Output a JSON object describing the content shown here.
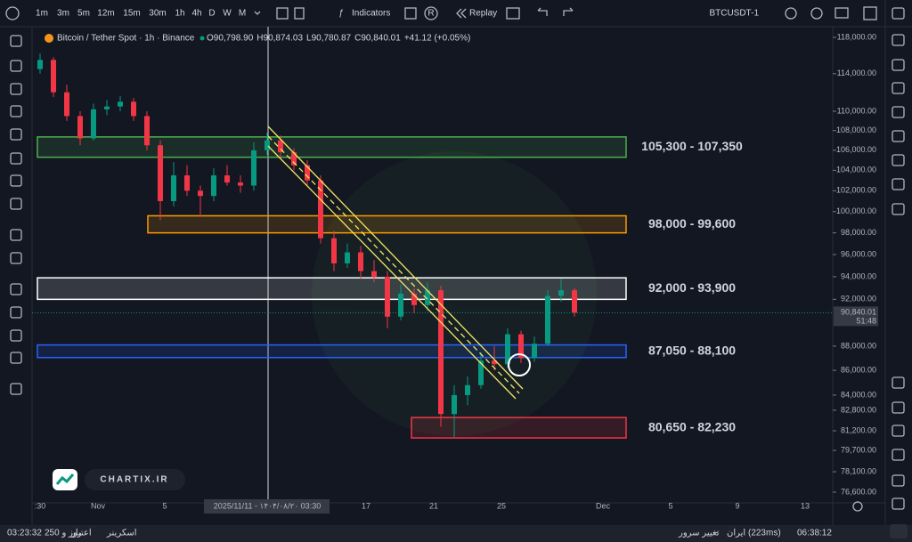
{
  "toolbar": {
    "intervals": [
      "1m",
      "3m",
      "5m",
      "12m",
      "15m",
      "30m",
      "1h",
      "4h",
      "D",
      "W",
      "M"
    ],
    "indicators": "Indicators",
    "replay": "Replay",
    "symbol": "BTCUSDT-1",
    "letter": "R"
  },
  "chart_data": {
    "type": "candlestick",
    "title": "Bitcoin / Tether Spot · 1h · Binance",
    "ohlc_legend": {
      "o_label": "O",
      "o": "90,798.90",
      "h_label": "H",
      "h": "90,874.03",
      "l_label": "L",
      "l": "90,780.87",
      "c_label": "C",
      "c": "90,840.01",
      "change": "+41.12 (+0.05%)"
    },
    "log_scale": true,
    "ylim": [
      76600,
      118000
    ],
    "yticks": [
      {
        "value": 118000,
        "label": "118,000.00"
      },
      {
        "value": 114000,
        "label": "114,000.00"
      },
      {
        "value": 110000,
        "label": "110,000.00"
      },
      {
        "value": 108000,
        "label": "108,000.00"
      },
      {
        "value": 106000,
        "label": "106,000.00"
      },
      {
        "value": 104000,
        "label": "104,000.00"
      },
      {
        "value": 102000,
        "label": "102,000.00"
      },
      {
        "value": 100000,
        "label": "100,000.00"
      },
      {
        "value": 98000,
        "label": "98,000.00"
      },
      {
        "value": 96000,
        "label": "96,000.00"
      },
      {
        "value": 94000,
        "label": "94,000.00"
      },
      {
        "value": 92000,
        "label": "92,000.00"
      },
      {
        "value": 88000,
        "label": "88,000.00"
      },
      {
        "value": 86000,
        "label": "86,000.00"
      },
      {
        "value": 84000,
        "label": "84,000.00"
      },
      {
        "value": 82800,
        "label": "82,800.00"
      },
      {
        "value": 81200,
        "label": "81,200.00"
      },
      {
        "value": 79700,
        "label": "79,700.00"
      },
      {
        "value": 78100,
        "label": "78,100.00"
      },
      {
        "value": 76600,
        "label": "76,600.00"
      }
    ],
    "x_labels": [
      ":30",
      "Nov",
      "5",
      "17",
      "21",
      "25",
      "Dec",
      "5",
      "9",
      "13"
    ],
    "crosshair_label": "2025/11/11 - ۱۴۰۴/۰۸/۲۰   03:30",
    "last_price": {
      "value": 90840.01,
      "label": "90,840.01",
      "countdown": "51:48"
    },
    "up_color": "#089981",
    "down_color": "#f23645",
    "ohlc": [
      [
        114500,
        116200,
        114000,
        115500
      ],
      [
        115500,
        115800,
        111500,
        112000
      ],
      [
        112000,
        112800,
        109000,
        109500
      ],
      [
        109500,
        110000,
        106500,
        107200
      ],
      [
        107200,
        110800,
        107000,
        110200
      ],
      [
        110200,
        111200,
        109600,
        110500
      ],
      [
        110500,
        111600,
        110000,
        111000
      ],
      [
        111000,
        111400,
        109000,
        109500
      ],
      [
        109500,
        110000,
        106000,
        106500
      ],
      [
        106500,
        107000,
        99200,
        101000
      ],
      [
        101000,
        104800,
        100500,
        103500
      ],
      [
        103500,
        104500,
        101500,
        102000
      ],
      [
        102000,
        102500,
        99500,
        101500
      ],
      [
        101500,
        104200,
        101000,
        103500
      ],
      [
        103500,
        104500,
        102500,
        102800
      ],
      [
        102800,
        103500,
        101800,
        102500
      ],
      [
        102500,
        106800,
        102000,
        106000
      ],
      [
        106000,
        107800,
        105500,
        107000
      ],
      [
        107000,
        107500,
        105200,
        105800
      ],
      [
        105800,
        106200,
        104000,
        104500
      ],
      [
        104500,
        105000,
        102500,
        103000
      ],
      [
        103000,
        103500,
        97000,
        97500
      ],
      [
        97500,
        98200,
        94500,
        95200
      ],
      [
        95200,
        97000,
        94800,
        96200
      ],
      [
        96200,
        96800,
        93800,
        94500
      ],
      [
        94500,
        95500,
        93500,
        94000
      ],
      [
        94000,
        94500,
        89500,
        90500
      ],
      [
        90500,
        93300,
        90200,
        92500
      ],
      [
        92500,
        93000,
        90800,
        91500
      ],
      [
        91500,
        93500,
        91000,
        92800
      ],
      [
        92800,
        93200,
        81500,
        82500
      ],
      [
        82500,
        84800,
        80700,
        84000
      ],
      [
        84000,
        85500,
        83200,
        84800
      ],
      [
        84800,
        87500,
        84500,
        86800
      ],
      [
        86800,
        88000,
        86000,
        86500
      ],
      [
        86500,
        89500,
        86200,
        89000
      ],
      [
        89000,
        89300,
        86600,
        87000
      ],
      [
        87000,
        88800,
        86700,
        88200
      ],
      [
        88200,
        92800,
        88000,
        92300
      ],
      [
        92300,
        93800,
        91800,
        92800
      ],
      [
        92800,
        93000,
        90500,
        90840
      ]
    ],
    "zones": [
      {
        "label": "105,300 - 107,350",
        "low": 105300,
        "high": 107350,
        "color": "#4caf50"
      },
      {
        "label": "98,000 - 99,600",
        "low": 98000,
        "high": 99600,
        "color": "#ff9800"
      },
      {
        "label": "92,000 - 93,900",
        "low": 92000,
        "high": 93900,
        "color": "#ffffff"
      },
      {
        "label": "87,050 - 88,100",
        "low": 87050,
        "high": 88100,
        "color": "#2962ff"
      },
      {
        "label": "80,650 - 82,230",
        "low": 80650,
        "high": 82230,
        "color": "#f23645"
      }
    ]
  },
  "watermark": "CHARTIX.IR",
  "status_bar": {
    "clock": "03:23:32",
    "days": "250 روز و",
    "credit": "اعتبار",
    "screener": "اسکرینر",
    "server": "تغییر سرور",
    "server_name": "ایران (223ms)",
    "dash": "-",
    "time": "06:38:12"
  }
}
